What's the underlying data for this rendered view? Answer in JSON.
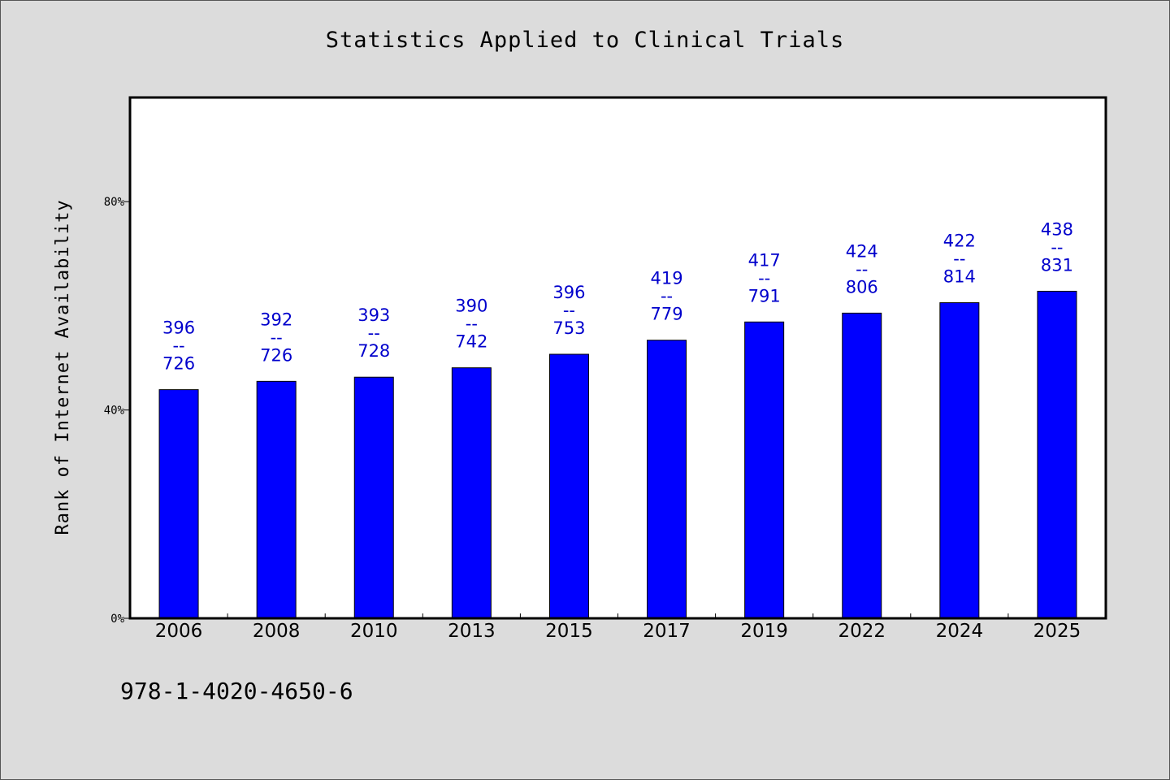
{
  "colors": {
    "background": "#dcdcdc",
    "plot_background": "#ffffff",
    "bar": "#0000ff",
    "data_label": "#0000cc"
  },
  "footer": {
    "isbn": "978-1-4020-4650-6"
  },
  "chart_data": {
    "type": "bar",
    "title": "Statistics Applied to Clinical Trials",
    "xlabel": "",
    "ylabel": "Rank of Internet Availability",
    "ylim": [
      0,
      100
    ],
    "yticks": [
      {
        "value": 0,
        "label": "0%"
      },
      {
        "value": 40,
        "label": "40%"
      },
      {
        "value": 80,
        "label": "80%"
      }
    ],
    "grid": false,
    "categories": [
      "2006",
      "2008",
      "2010",
      "2013",
      "2015",
      "2017",
      "2019",
      "2022",
      "2024",
      "2025"
    ],
    "values": [
      43.9,
      45.5,
      46.3,
      48.1,
      50.7,
      53.4,
      56.9,
      58.6,
      60.6,
      62.8
    ],
    "data_labels": [
      {
        "top": "396",
        "sep": "--",
        "bottom": "726"
      },
      {
        "top": "392",
        "sep": "--",
        "bottom": "726"
      },
      {
        "top": "393",
        "sep": "--",
        "bottom": "728"
      },
      {
        "top": "390",
        "sep": "--",
        "bottom": "742"
      },
      {
        "top": "396",
        "sep": "--",
        "bottom": "753"
      },
      {
        "top": "419",
        "sep": "--",
        "bottom": "779"
      },
      {
        "top": "417",
        "sep": "--",
        "bottom": "791"
      },
      {
        "top": "424",
        "sep": "--",
        "bottom": "806"
      },
      {
        "top": "422",
        "sep": "--",
        "bottom": "814"
      },
      {
        "top": "438",
        "sep": "--",
        "bottom": "831"
      }
    ]
  }
}
